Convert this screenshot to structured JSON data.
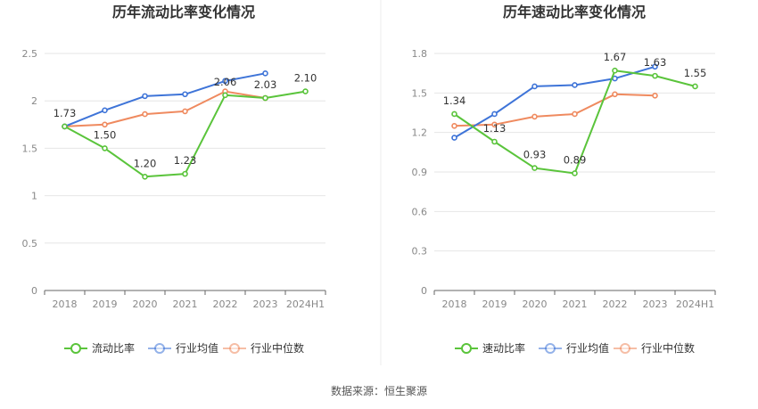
{
  "colors": {
    "company": "#5ac43b",
    "industry_avg": "#3e74d8",
    "industry_median": "#ef8a5f",
    "grid": "#e6e6e6",
    "axis": "#666666"
  },
  "legend": {
    "industry_avg": "行业均值",
    "industry_median": "行业中位数"
  },
  "source_text": "数据来源：恒生聚源",
  "chart_data": [
    {
      "type": "line",
      "title": "历年流动比率变化情况",
      "categories": [
        "2018",
        "2019",
        "2020",
        "2021",
        "2022",
        "2023",
        "2024H1"
      ],
      "ylim": [
        0,
        2.5
      ],
      "yticks": [
        "0",
        "0.5",
        "1",
        "1.5",
        "2",
        "2.5"
      ],
      "grid": true,
      "legend_position": "bottom",
      "series": [
        {
          "name": "流动比率",
          "key": "company",
          "values": [
            1.73,
            1.5,
            1.2,
            1.23,
            2.06,
            2.03,
            2.1
          ],
          "labels": [
            "1.73",
            "1.50",
            "1.20",
            "1.23",
            "2.06",
            "2.03",
            "2.10"
          ]
        },
        {
          "name": "行业均值",
          "key": "industry_avg",
          "values": [
            1.73,
            1.9,
            2.05,
            2.07,
            2.21,
            2.29,
            null
          ]
        },
        {
          "name": "行业中位数",
          "key": "industry_median",
          "values": [
            1.73,
            1.75,
            1.86,
            1.89,
            2.1,
            2.03,
            null
          ]
        }
      ]
    },
    {
      "type": "line",
      "title": "历年速动比率变化情况",
      "categories": [
        "2018",
        "2019",
        "2020",
        "2021",
        "2022",
        "2023",
        "2024H1"
      ],
      "ylim": [
        0,
        1.8
      ],
      "yticks": [
        "0",
        "0.3",
        "0.6",
        "0.9",
        "1.2",
        "1.5",
        "1.8"
      ],
      "grid": true,
      "legend_position": "bottom",
      "series": [
        {
          "name": "速动比率",
          "key": "company",
          "values": [
            1.34,
            1.13,
            0.93,
            0.89,
            1.67,
            1.63,
            1.55
          ],
          "labels": [
            "1.34",
            "1.13",
            "0.93",
            "0.89",
            "1.67",
            "1.63",
            "1.55"
          ]
        },
        {
          "name": "行业均值",
          "key": "industry_avg",
          "values": [
            1.16,
            1.34,
            1.55,
            1.56,
            1.61,
            1.7,
            null
          ]
        },
        {
          "name": "行业中位数",
          "key": "industry_median",
          "values": [
            1.25,
            1.26,
            1.32,
            1.34,
            1.49,
            1.48,
            null
          ]
        }
      ]
    }
  ]
}
